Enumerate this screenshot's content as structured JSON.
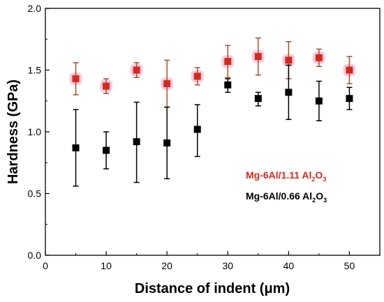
{
  "chart_data": {
    "type": "scatter",
    "xlabel": "Distance of indent (μm)",
    "ylabel": "Hardness (GPa)",
    "xlim": [
      0,
      55
    ],
    "ylim": [
      0.0,
      2.0
    ],
    "x_ticks": [
      "0",
      "10",
      "20",
      "30",
      "40",
      "50"
    ],
    "y_ticks": [
      "0.0",
      "0.5",
      "1.0",
      "1.5",
      "2.0"
    ],
    "legend_position": "lower-right",
    "series": [
      {
        "name": "Mg-6Al/1.11 Al2O3",
        "legend_main": "Mg-6Al/1.11 Al",
        "legend_sub": "2",
        "legend_tail": "O",
        "legend_sub2": "3",
        "color": "#d42a1c",
        "error_color": "#a0522d",
        "halo_color": "#f2c6e0",
        "x": [
          5,
          10,
          15,
          20,
          25,
          30,
          35,
          40,
          45,
          50
        ],
        "y": [
          1.43,
          1.37,
          1.5,
          1.39,
          1.45,
          1.57,
          1.61,
          1.58,
          1.6,
          1.5
        ],
        "err_upper": [
          1.56,
          1.43,
          1.56,
          1.58,
          1.52,
          1.7,
          1.76,
          1.73,
          1.67,
          1.61
        ],
        "err_lower": [
          1.3,
          1.31,
          1.44,
          1.2,
          1.38,
          1.44,
          1.46,
          1.43,
          1.53,
          1.39
        ]
      },
      {
        "name": "Mg-6Al/0.66 Al2O3",
        "legend_main": "Mg-6Al/0.66 Al",
        "legend_sub": "2",
        "legend_tail": "O",
        "legend_sub2": "3",
        "color": "#000000",
        "error_color": "#000000",
        "x": [
          5,
          10,
          15,
          20,
          25,
          30,
          35,
          40,
          45,
          50
        ],
        "y": [
          0.87,
          0.85,
          0.92,
          0.91,
          1.02,
          1.38,
          1.27,
          1.32,
          1.25,
          1.27
        ],
        "err_upper": [
          1.18,
          1.0,
          1.24,
          1.2,
          1.22,
          1.43,
          1.32,
          1.54,
          1.41,
          1.36
        ],
        "err_lower": [
          0.56,
          0.7,
          0.59,
          0.62,
          0.8,
          1.32,
          1.21,
          1.1,
          1.09,
          1.18
        ]
      }
    ]
  }
}
